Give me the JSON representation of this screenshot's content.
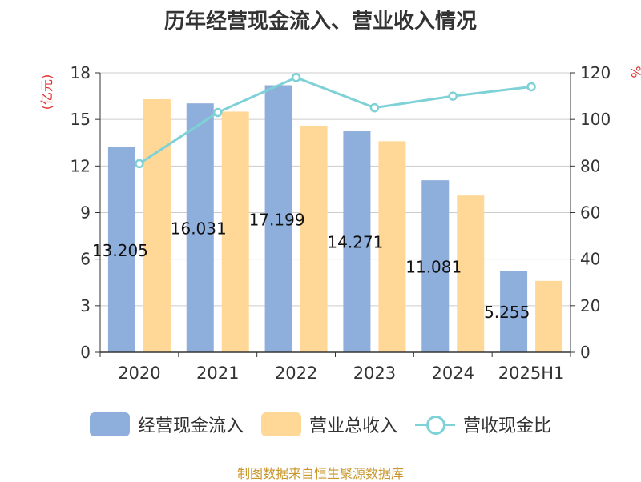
{
  "chart_data": {
    "type": "bar",
    "title": "历年经营现金流入、营业收入情况",
    "categories": [
      "2020",
      "2021",
      "2022",
      "2023",
      "2024",
      "2025H1"
    ],
    "series": [
      {
        "name": "经营现金流入",
        "axis": "left",
        "color": "#8eaedb",
        "values": [
          13.205,
          16.031,
          17.199,
          14.271,
          11.081,
          5.255
        ],
        "labels": [
          "13.205",
          "16.031",
          "17.199",
          "14.271",
          "11.081",
          "5.255"
        ]
      },
      {
        "name": "营业总收入",
        "axis": "left",
        "color": "#ffd898",
        "values": [
          16.3,
          15.5,
          14.6,
          13.6,
          10.1,
          4.6
        ]
      },
      {
        "name": "营收现金比",
        "axis": "right",
        "type": "line",
        "color": "#7ed1d6",
        "values": [
          81,
          103,
          118,
          105,
          110,
          114
        ]
      }
    ],
    "ylabel_left": "(亿元)",
    "ylabel_right": "%",
    "ylim_left": [
      0,
      18
    ],
    "yticks_left": [
      "0",
      "3",
      "6",
      "9",
      "12",
      "15",
      "18"
    ],
    "ylim_right": [
      0,
      120
    ],
    "yticks_right": [
      "0",
      "20",
      "40",
      "60",
      "80",
      "100",
      "120"
    ],
    "grid": true,
    "legend": "bottom"
  },
  "source": "制图数据来自恒生聚源数据库"
}
